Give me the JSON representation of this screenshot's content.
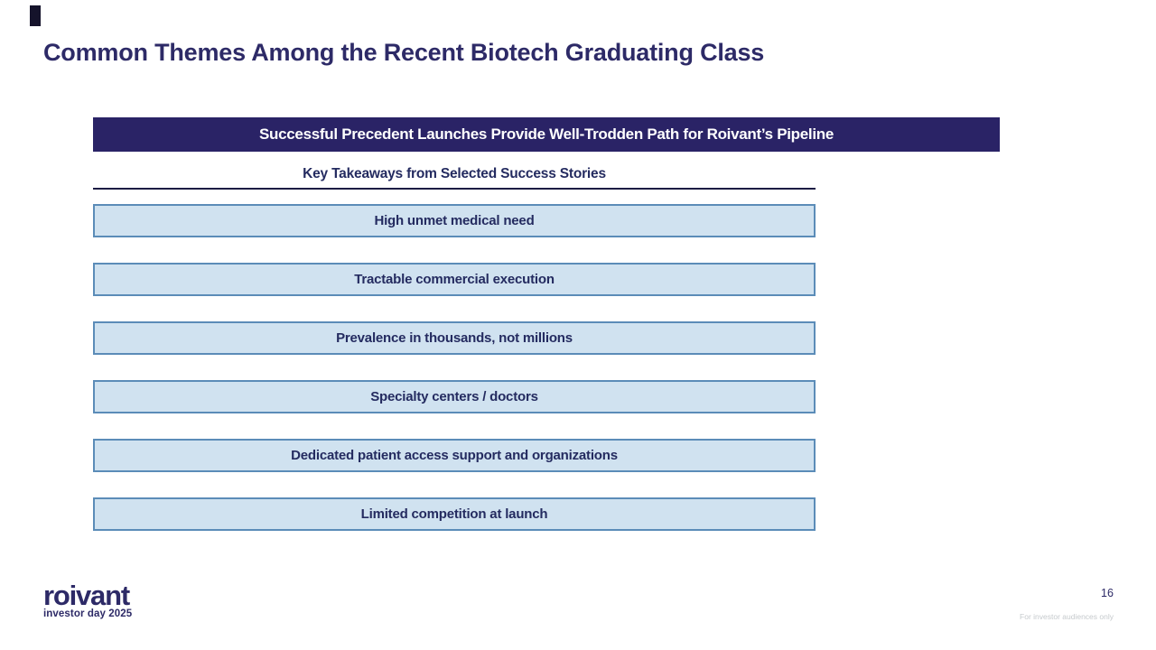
{
  "slide": {
    "title": "Common Themes Among the Recent Biotech Graduating Class",
    "banner": "Successful Precedent Launches Provide Well-Trodden Path for Roivant’s Pipeline",
    "takeaways_heading": "Key Takeaways from Selected Success Stories",
    "takeaways": [
      "High unmet medical need",
      "Tractable commercial execution",
      "Prevalence in thousands, not millions",
      "Specialty centers / doctors",
      "Dedicated patient access support and organizations",
      "Limited competition at launch"
    ],
    "footer": {
      "logo_text": "roivant",
      "logo_subtext": "investor day 2025",
      "page_number": "16",
      "disclaimer": "For investor audiences only"
    },
    "colors": {
      "navy": "#2a2366",
      "box_fill": "#d0e2f0",
      "box_border": "#5b8cb8",
      "text_navy": "#242b60",
      "disclaimer_gray": "#c6cacd"
    }
  }
}
